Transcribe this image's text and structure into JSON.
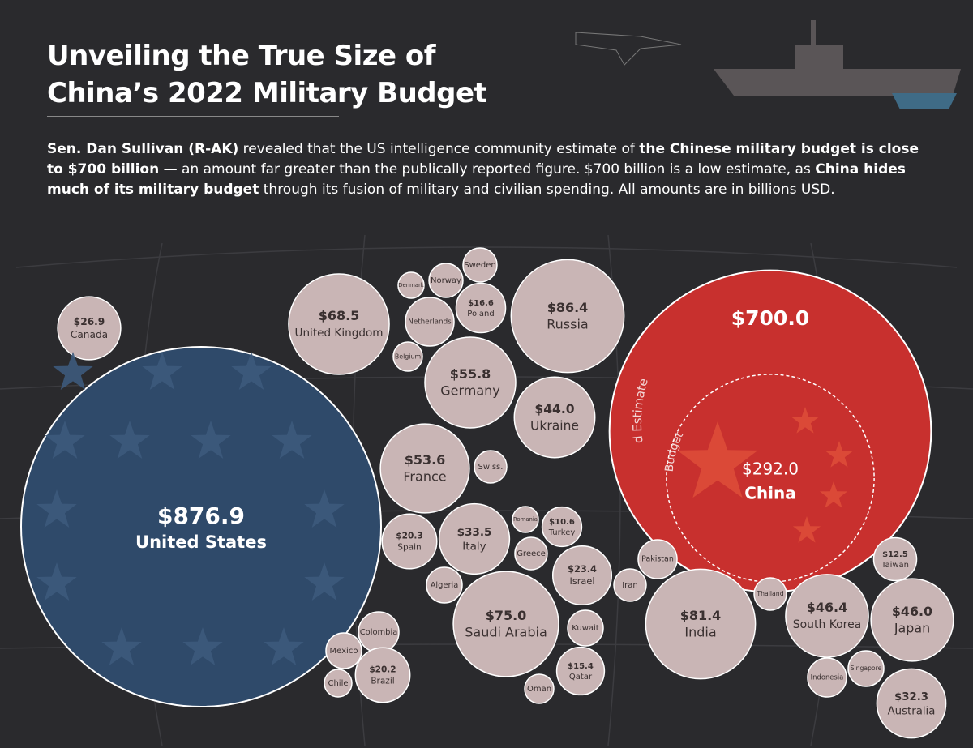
{
  "chart_data": {
    "type": "bubble",
    "title": "Unveiling the True Size of China’s 2022 Military Budget",
    "subtitle": [
      {
        "text": "Sen. Dan Sullivan (R-AK)",
        "bold": true
      },
      {
        "text": " revealed that the US intelligence community estimate of ",
        "bold": false
      },
      {
        "text": "the Chinese military budget is close to $700 billion",
        "bold": true
      },
      {
        "text": " — an amount far greater than the publically reported figure. $700 billion is a low estimate, as ",
        "bold": false
      },
      {
        "text": "China hides much of its military budget",
        "bold": true
      },
      {
        "text": " through its fusion of military and civilian spending. All amounts are in billions USD.",
        "bold": false
      }
    ],
    "categories": [
      "Canada",
      "United States",
      "United Kingdom",
      "Denmark",
      "Norway",
      "Sweden",
      "Netherlands",
      "Poland",
      "Belgium",
      "Russia",
      "Germany",
      "Ukraine",
      "France",
      "Swiss.",
      "Spain",
      "Italy",
      "Romania",
      "Turkey",
      "Greece",
      "Algeria",
      "Saudi Arabia",
      "Israel",
      "Kuwait",
      "Qatar",
      "Oman",
      "Iran",
      "Pakistan",
      "India",
      "Thailand",
      "South Korea",
      "Taiwan",
      "Japan",
      "Singapore",
      "Indonesia",
      "Australia",
      "Colombia",
      "Mexico",
      "Chile",
      "Brazil",
      "China"
    ],
    "values": [
      26.9,
      876.9,
      68.5,
      null,
      null,
      null,
      null,
      16.6,
      null,
      86.4,
      55.8,
      44.0,
      53.6,
      null,
      20.3,
      33.5,
      null,
      10.6,
      null,
      null,
      75.0,
      23.4,
      null,
      15.4,
      null,
      null,
      null,
      81.4,
      null,
      46.4,
      12.5,
      46.0,
      null,
      null,
      32.3,
      null,
      null,
      null,
      20.2,
      292.0
    ],
    "value_labels": [
      "$26.9",
      "$876.9",
      "$68.5",
      null,
      null,
      null,
      null,
      "$16.6",
      null,
      "$86.4",
      "$55.8",
      "$44.0",
      "$53.6",
      null,
      "$20.3",
      "$33.5",
      null,
      "$10.6",
      null,
      null,
      "$75.0",
      "$23.4",
      null,
      "$15.4",
      null,
      null,
      null,
      "$81.4",
      null,
      "$46.4",
      "$12.5",
      "$46.0",
      null,
      null,
      "$32.3",
      null,
      null,
      null,
      "$20.2",
      "$292.0"
    ],
    "estimate": {
      "label": "US Classified Estimate",
      "value": 700.0,
      "value_label": "$700.0"
    },
    "public_label": "Public Budget",
    "colors": {
      "bubble": "#c9b5b5",
      "united_states": "#2f4a6a",
      "china": "#c8302e"
    }
  }
}
